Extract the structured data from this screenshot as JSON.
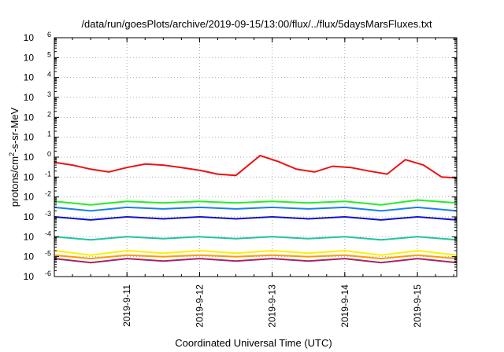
{
  "chart_data": {
    "type": "line",
    "title": "/data/run/goesPlots/archive/2019-09-15/13:00/flux/../flux/5daysMarsFluxes.txt",
    "xlabel": "Coordinated Universal Time (UTC)",
    "ylabel": {
      "prefix": "protons/cm",
      "sup": "2",
      "suffix": "-s-sr-MeV"
    },
    "yscale": "log",
    "ylim": [
      1e-06,
      1000000.0
    ],
    "ytick_labels": [
      {
        "base": "10",
        "exp": "-6",
        "value": 1e-06
      },
      {
        "base": "10",
        "exp": "-5",
        "value": 1e-05
      },
      {
        "base": "10",
        "exp": "-4",
        "value": 0.0001
      },
      {
        "base": "10",
        "exp": "-3",
        "value": 0.001
      },
      {
        "base": "10",
        "exp": "-2",
        "value": 0.01
      },
      {
        "base": "10",
        "exp": "-1",
        "value": 0.1
      },
      {
        "base": "10",
        "exp": "0",
        "value": 1
      },
      {
        "base": "10",
        "exp": "1",
        "value": 10
      },
      {
        "base": "10",
        "exp": "2",
        "value": 100
      },
      {
        "base": "10",
        "exp": "3",
        "value": 1000
      },
      {
        "base": "10",
        "exp": "4",
        "value": 10000
      },
      {
        "base": "10",
        "exp": "5",
        "value": 100000
      },
      {
        "base": "10",
        "exp": "6",
        "value": 1000000
      }
    ],
    "xlim": [
      "2019-09-10T00:00",
      "2019-09-15T13:00"
    ],
    "xtick_labels": [
      {
        "label": "2019-9-11",
        "date": "2019-09-11T00:00"
      },
      {
        "label": "2019-9-12",
        "date": "2019-09-12T00:00"
      },
      {
        "label": "2019-9-13",
        "date": "2019-09-13T00:00"
      },
      {
        "label": "2019-9-14",
        "date": "2019-09-14T00:00"
      },
      {
        "label": "2019-9-15",
        "date": "2019-09-15T00:00"
      }
    ],
    "grid": true,
    "series": [
      {
        "color": "#ee1111",
        "values": [
          [
            "2019-09-10T00:00",
            0.55
          ],
          [
            "2019-09-10T06:00",
            0.4
          ],
          [
            "2019-09-10T12:00",
            0.25
          ],
          [
            "2019-09-10T18:00",
            0.18
          ],
          [
            "2019-09-11T00:00",
            0.3
          ],
          [
            "2019-09-11T06:00",
            0.45
          ],
          [
            "2019-09-11T12:00",
            0.4
          ],
          [
            "2019-09-11T18:00",
            0.3
          ],
          [
            "2019-09-12T00:00",
            0.22
          ],
          [
            "2019-09-12T06:00",
            0.14
          ],
          [
            "2019-09-12T12:00",
            0.12
          ],
          [
            "2019-09-12T20:00",
            1.2
          ],
          [
            "2019-09-13T02:00",
            0.6
          ],
          [
            "2019-09-13T08:00",
            0.25
          ],
          [
            "2019-09-13T14:00",
            0.18
          ],
          [
            "2019-09-13T20:00",
            0.35
          ],
          [
            "2019-09-14T02:00",
            0.3
          ],
          [
            "2019-09-14T08:00",
            0.2
          ],
          [
            "2019-09-14T14:00",
            0.14
          ],
          [
            "2019-09-14T20:00",
            0.75
          ],
          [
            "2019-09-15T02:00",
            0.4
          ],
          [
            "2019-09-15T08:00",
            0.1
          ],
          [
            "2019-09-15T13:00",
            0.09
          ]
        ]
      },
      {
        "color": "#22ee22",
        "values": [
          [
            "2019-09-10T00:00",
            0.006
          ],
          [
            "2019-09-10T12:00",
            0.004
          ],
          [
            "2019-09-11T00:00",
            0.006
          ],
          [
            "2019-09-11T12:00",
            0.005
          ],
          [
            "2019-09-12T00:00",
            0.006
          ],
          [
            "2019-09-12T12:00",
            0.005
          ],
          [
            "2019-09-13T00:00",
            0.006
          ],
          [
            "2019-09-13T12:00",
            0.005
          ],
          [
            "2019-09-14T00:00",
            0.006
          ],
          [
            "2019-09-14T12:00",
            0.004
          ],
          [
            "2019-09-15T00:00",
            0.007
          ],
          [
            "2019-09-15T13:00",
            0.005
          ]
        ]
      },
      {
        "color": "#1a7ff0",
        "values": [
          [
            "2019-09-10T00:00",
            0.003
          ],
          [
            "2019-09-10T12:00",
            0.002
          ],
          [
            "2019-09-11T00:00",
            0.003
          ],
          [
            "2019-09-11T12:00",
            0.0025
          ],
          [
            "2019-09-12T00:00",
            0.003
          ],
          [
            "2019-09-12T12:00",
            0.0025
          ],
          [
            "2019-09-13T00:00",
            0.003
          ],
          [
            "2019-09-13T12:00",
            0.0025
          ],
          [
            "2019-09-14T00:00",
            0.003
          ],
          [
            "2019-09-14T12:00",
            0.002
          ],
          [
            "2019-09-15T00:00",
            0.003
          ],
          [
            "2019-09-15T13:00",
            0.002
          ]
        ]
      },
      {
        "color": "#1111cc",
        "values": [
          [
            "2019-09-10T00:00",
            0.001
          ],
          [
            "2019-09-10T12:00",
            0.0007
          ],
          [
            "2019-09-11T00:00",
            0.001
          ],
          [
            "2019-09-11T12:00",
            0.0008
          ],
          [
            "2019-09-12T00:00",
            0.001
          ],
          [
            "2019-09-12T12:00",
            0.0008
          ],
          [
            "2019-09-13T00:00",
            0.001
          ],
          [
            "2019-09-13T12:00",
            0.0008
          ],
          [
            "2019-09-14T00:00",
            0.001
          ],
          [
            "2019-09-14T12:00",
            0.0007
          ],
          [
            "2019-09-15T00:00",
            0.001
          ],
          [
            "2019-09-15T13:00",
            0.0007
          ]
        ]
      },
      {
        "color": "#22c3a0",
        "values": [
          [
            "2019-09-10T00:00",
            0.0001
          ],
          [
            "2019-09-10T12:00",
            7e-05
          ],
          [
            "2019-09-11T00:00",
            0.0001
          ],
          [
            "2019-09-11T12:00",
            8e-05
          ],
          [
            "2019-09-12T00:00",
            0.0001
          ],
          [
            "2019-09-12T12:00",
            8e-05
          ],
          [
            "2019-09-13T00:00",
            0.0001
          ],
          [
            "2019-09-13T12:00",
            8e-05
          ],
          [
            "2019-09-14T00:00",
            0.0001
          ],
          [
            "2019-09-14T12:00",
            7e-05
          ],
          [
            "2019-09-15T00:00",
            0.0001
          ],
          [
            "2019-09-15T13:00",
            7e-05
          ]
        ]
      },
      {
        "color": "#ffee00",
        "values": [
          [
            "2019-09-10T00:00",
            2e-05
          ],
          [
            "2019-09-10T12:00",
            1.2e-05
          ],
          [
            "2019-09-11T00:00",
            2e-05
          ],
          [
            "2019-09-11T12:00",
            1.5e-05
          ],
          [
            "2019-09-12T00:00",
            2e-05
          ],
          [
            "2019-09-12T12:00",
            1.5e-05
          ],
          [
            "2019-09-13T00:00",
            2e-05
          ],
          [
            "2019-09-13T12:00",
            1.5e-05
          ],
          [
            "2019-09-14T00:00",
            2e-05
          ],
          [
            "2019-09-14T12:00",
            1.2e-05
          ],
          [
            "2019-09-15T00:00",
            2e-05
          ],
          [
            "2019-09-15T13:00",
            1.2e-05
          ]
        ]
      },
      {
        "color": "#ff9900",
        "values": [
          [
            "2019-09-10T00:00",
            1.2e-05
          ],
          [
            "2019-09-10T12:00",
            8e-06
          ],
          [
            "2019-09-11T00:00",
            1.2e-05
          ],
          [
            "2019-09-11T12:00",
            1e-05
          ],
          [
            "2019-09-12T00:00",
            1.2e-05
          ],
          [
            "2019-09-12T12:00",
            1e-05
          ],
          [
            "2019-09-13T00:00",
            1.2e-05
          ],
          [
            "2019-09-13T12:00",
            1e-05
          ],
          [
            "2019-09-14T00:00",
            1.2e-05
          ],
          [
            "2019-09-14T12:00",
            8e-06
          ],
          [
            "2019-09-15T00:00",
            1.2e-05
          ],
          [
            "2019-09-15T13:00",
            8e-06
          ]
        ]
      },
      {
        "color": "#aa2266",
        "values": [
          [
            "2019-09-10T00:00",
            8e-06
          ],
          [
            "2019-09-10T12:00",
            5e-06
          ],
          [
            "2019-09-11T00:00",
            8e-06
          ],
          [
            "2019-09-11T12:00",
            6e-06
          ],
          [
            "2019-09-12T00:00",
            8e-06
          ],
          [
            "2019-09-12T12:00",
            6e-06
          ],
          [
            "2019-09-13T00:00",
            8e-06
          ],
          [
            "2019-09-13T12:00",
            6e-06
          ],
          [
            "2019-09-14T00:00",
            8e-06
          ],
          [
            "2019-09-14T12:00",
            5e-06
          ],
          [
            "2019-09-15T00:00",
            8e-06
          ],
          [
            "2019-09-15T13:00",
            5e-06
          ]
        ]
      }
    ]
  }
}
